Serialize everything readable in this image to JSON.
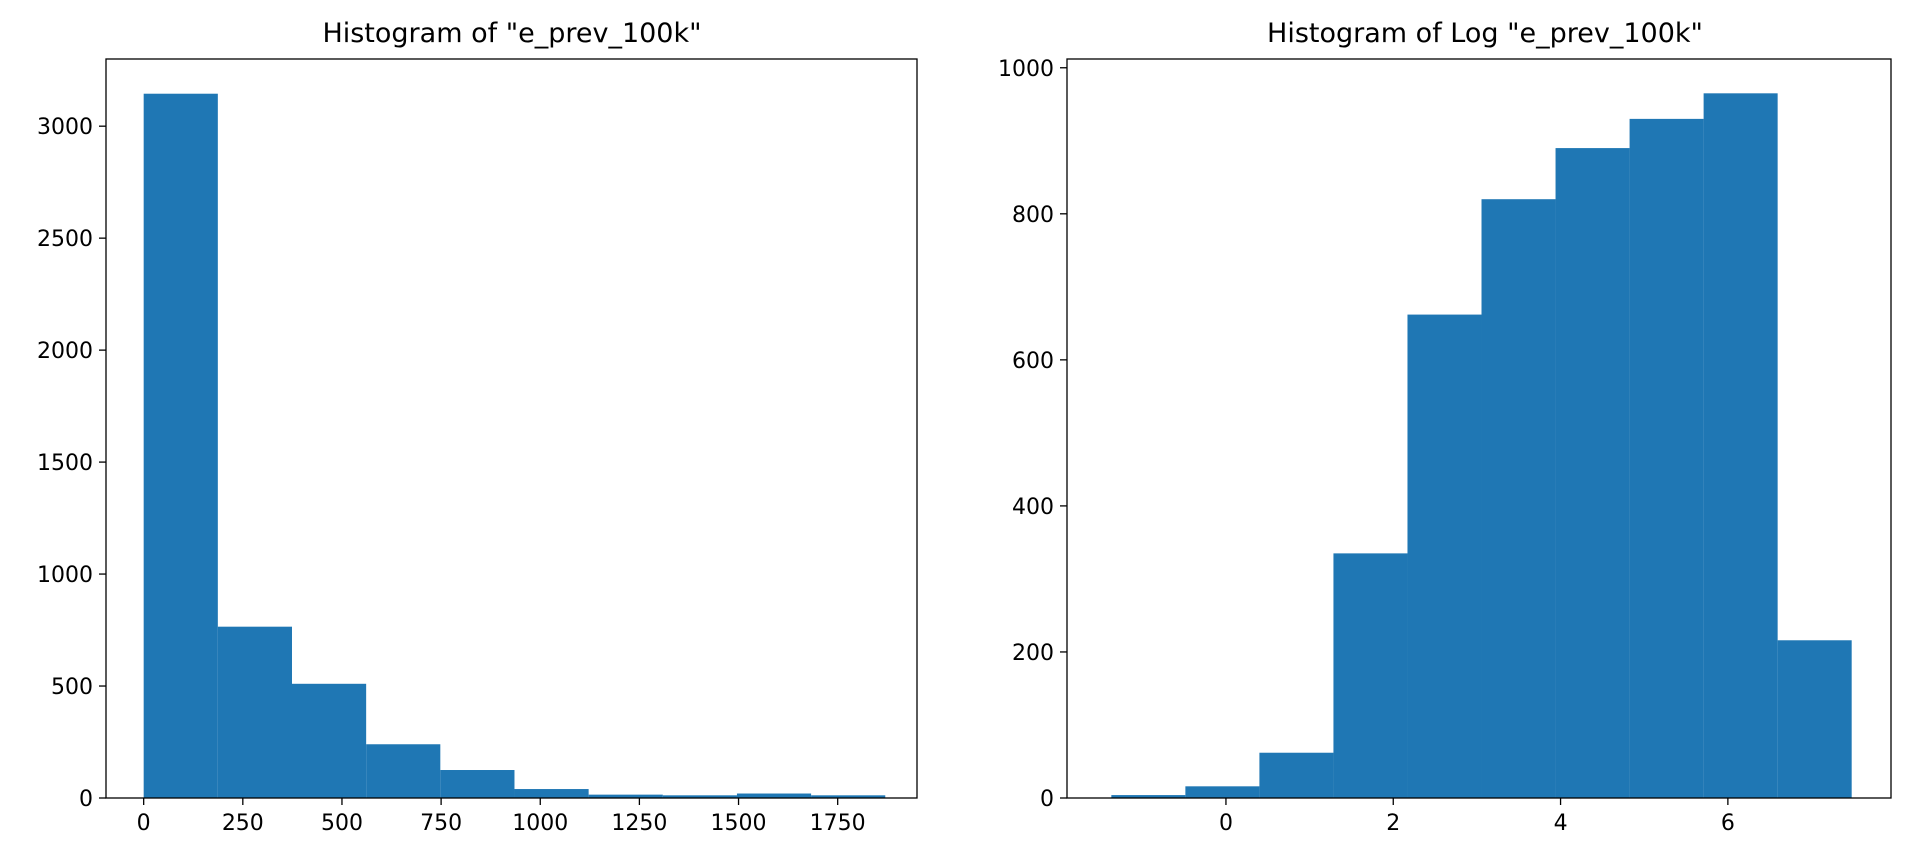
{
  "chart_data": [
    {
      "type": "bar",
      "title": "Histogram of \"e_prev_100k\"",
      "xlabel": "",
      "ylabel": "",
      "xlim": [
        -95,
        1950
      ],
      "ylim": [
        0,
        3300
      ],
      "xticks": [
        0,
        250,
        500,
        750,
        1000,
        1250,
        1500,
        1750
      ],
      "yticks": [
        0,
        500,
        1000,
        1500,
        2000,
        2500,
        3000
      ],
      "bin_edges": [
        0,
        187,
        374,
        561,
        748,
        935,
        1122,
        1309,
        1496,
        1683,
        1870
      ],
      "values": [
        3145,
        765,
        510,
        240,
        125,
        40,
        15,
        12,
        20,
        12
      ],
      "bar_color": "#1f77b4",
      "grid": false
    },
    {
      "type": "bar",
      "title": "Histogram of Log \"e_prev_100k\"",
      "xlabel": "",
      "ylabel": "",
      "xlim": [
        -1.9,
        7.95
      ],
      "ylim": [
        0,
        1012
      ],
      "xticks": [
        0,
        2,
        4,
        6
      ],
      "yticks": [
        0,
        200,
        400,
        600,
        800,
        1000
      ],
      "bin_edges": [
        -1.37,
        -0.485,
        0.4,
        1.285,
        2.17,
        3.055,
        3.94,
        4.825,
        5.71,
        6.595,
        7.48
      ],
      "values": [
        4,
        16,
        62,
        335,
        662,
        820,
        890,
        930,
        965,
        216
      ],
      "bar_color": "#1f77b4",
      "grid": false
    }
  ]
}
